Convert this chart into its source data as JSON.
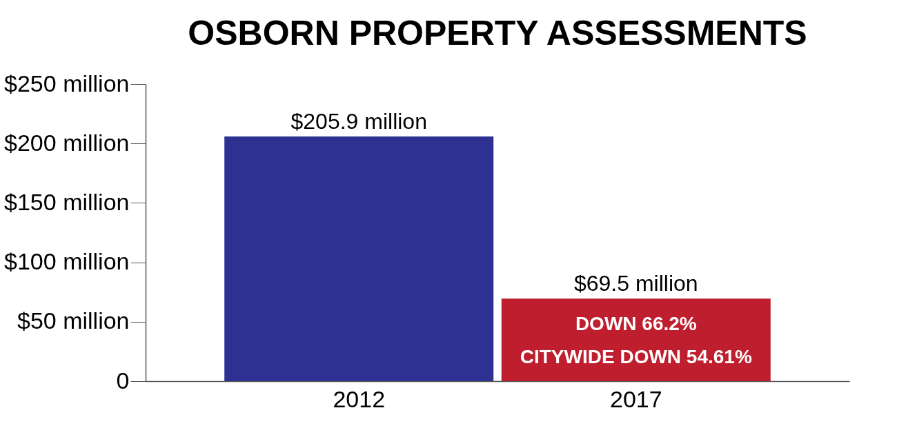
{
  "chart_data": {
    "type": "bar",
    "title": "OSBORN PROPERTY ASSESSMENTS",
    "categories": [
      "2012",
      "2017"
    ],
    "values": [
      205.9,
      69.5
    ],
    "colors": [
      "#2e3192",
      "#be1e2d"
    ],
    "value_labels": [
      "$205.9 million",
      "$69.5 million"
    ],
    "ylim": [
      0,
      250
    ],
    "yticks": [
      0,
      {
        "value": 50,
        "label": "$50 million"
      },
      {
        "value": 100,
        "label": "$100 million"
      },
      {
        "value": 150,
        "label": "$150 million"
      },
      {
        "value": 200,
        "label": "$200 million"
      },
      {
        "value": 250,
        "label": "$250 million"
      }
    ],
    "grid": false,
    "legend": false,
    "annotations": [
      "DOWN 66.2%",
      "CITYWIDE DOWN 54.61%"
    ]
  }
}
